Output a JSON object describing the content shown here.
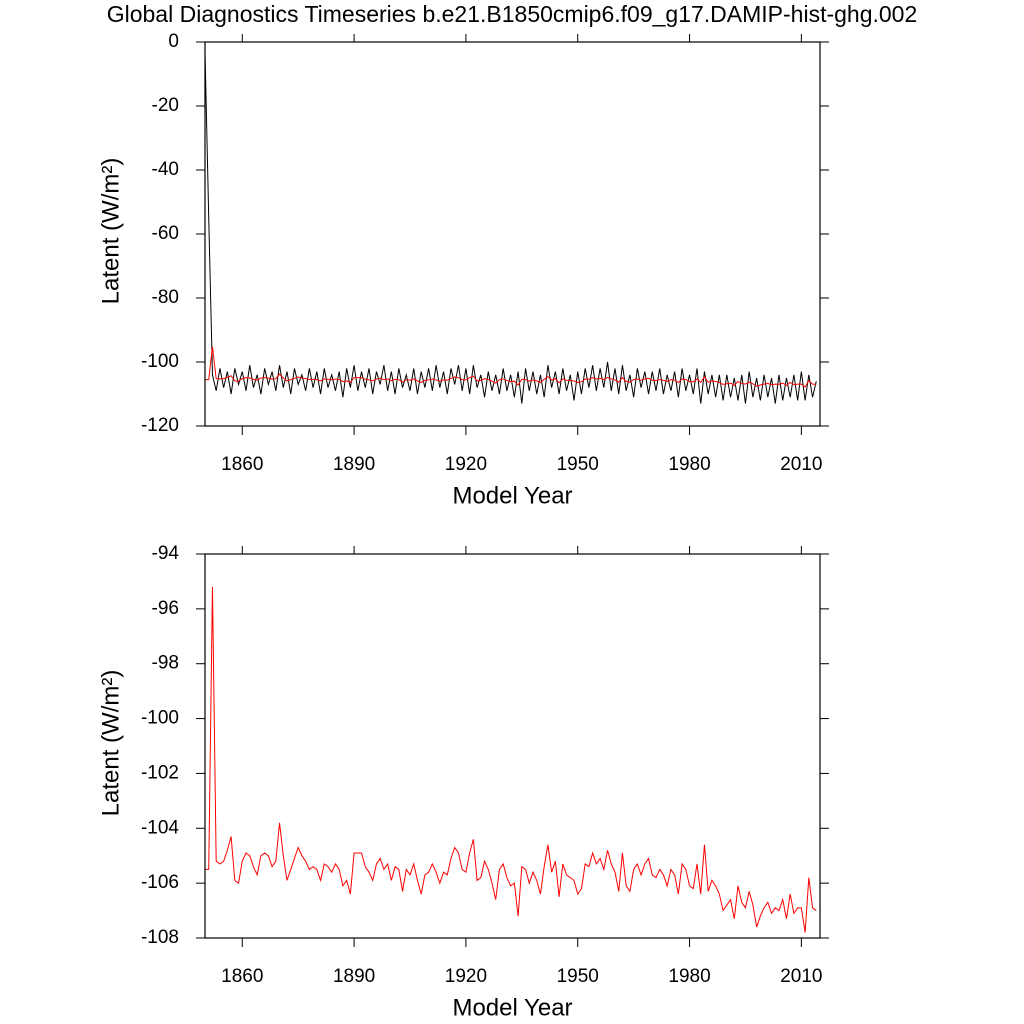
{
  "chart_data": [
    {
      "type": "line",
      "title": "Global Diagnostics Timeseries b.e21.B1850cmip6.f09_g17.DAMIP-hist-ghg.002",
      "x_label": "Model Year",
      "y_label": "Latent (W/m²)",
      "xlim": [
        1850,
        2015
      ],
      "xticks": [
        1860,
        1890,
        1920,
        1950,
        1980,
        2010
      ],
      "ylim": [
        -120,
        0
      ],
      "yticks": [
        -120,
        -100,
        -80,
        -60,
        -40,
        -20,
        0
      ],
      "x": [
        1850,
        1851,
        1852,
        1853,
        1854,
        1855,
        1856,
        1857,
        1858,
        1859,
        1860,
        1861,
        1862,
        1863,
        1864,
        1865,
        1866,
        1867,
        1868,
        1869,
        1870,
        1871,
        1872,
        1873,
        1874,
        1875,
        1876,
        1877,
        1878,
        1879,
        1880,
        1881,
        1882,
        1883,
        1884,
        1885,
        1886,
        1887,
        1888,
        1889,
        1890,
        1891,
        1892,
        1893,
        1894,
        1895,
        1896,
        1897,
        1898,
        1899,
        1900,
        1901,
        1902,
        1903,
        1904,
        1905,
        1906,
        1907,
        1908,
        1909,
        1910,
        1911,
        1912,
        1913,
        1914,
        1915,
        1916,
        1917,
        1918,
        1919,
        1920,
        1921,
        1922,
        1923,
        1924,
        1925,
        1926,
        1927,
        1928,
        1929,
        1930,
        1931,
        1932,
        1933,
        1934,
        1935,
        1936,
        1937,
        1938,
        1939,
        1940,
        1941,
        1942,
        1943,
        1944,
        1945,
        1946,
        1947,
        1948,
        1949,
        1950,
        1951,
        1952,
        1953,
        1954,
        1955,
        1956,
        1957,
        1958,
        1959,
        1960,
        1961,
        1962,
        1963,
        1964,
        1965,
        1966,
        1967,
        1968,
        1969,
        1970,
        1971,
        1972,
        1973,
        1974,
        1975,
        1976,
        1977,
        1978,
        1979,
        1980,
        1981,
        1982,
        1983,
        1984,
        1985,
        1986,
        1987,
        1988,
        1989,
        1990,
        1991,
        1992,
        1993,
        1994,
        1995,
        1996,
        1997,
        1998,
        1999,
        2000,
        2001,
        2002,
        2003,
        2004,
        2005,
        2006,
        2007,
        2008,
        2009,
        2010,
        2011,
        2012,
        2013,
        2014
      ],
      "series": [
        {
          "color": "#000000",
          "values": [
            -3,
            -55,
            -104,
            -109,
            -102,
            -108,
            -103,
            -110,
            -102,
            -107,
            -103,
            -109,
            -101,
            -108,
            -104,
            -110,
            -102,
            -107,
            -103,
            -109,
            -101,
            -108,
            -103,
            -110,
            -102,
            -107,
            -104,
            -109,
            -102,
            -108,
            -103,
            -110,
            -102,
            -108,
            -104,
            -109,
            -103,
            -111,
            -102,
            -108,
            -101,
            -109,
            -103,
            -108,
            -102,
            -110,
            -103,
            -107,
            -101,
            -109,
            -103,
            -110,
            -102,
            -108,
            -104,
            -109,
            -102,
            -110,
            -103,
            -108,
            -102,
            -109,
            -101,
            -108,
            -103,
            -110,
            -102,
            -107,
            -101,
            -109,
            -102,
            -110,
            -101,
            -108,
            -104,
            -111,
            -103,
            -109,
            -104,
            -110,
            -102,
            -109,
            -104,
            -111,
            -103,
            -113,
            -102,
            -109,
            -103,
            -110,
            -104,
            -111,
            -101,
            -108,
            -103,
            -110,
            -102,
            -109,
            -104,
            -112,
            -103,
            -110,
            -102,
            -108,
            -101,
            -109,
            -102,
            -108,
            -100,
            -109,
            -102,
            -110,
            -101,
            -109,
            -104,
            -111,
            -102,
            -108,
            -103,
            -110,
            -103,
            -109,
            -102,
            -110,
            -104,
            -109,
            -103,
            -111,
            -102,
            -109,
            -104,
            -110,
            -102,
            -113,
            -103,
            -110,
            -104,
            -111,
            -104,
            -112,
            -104,
            -111,
            -105,
            -112,
            -104,
            -113,
            -103,
            -111,
            -105,
            -112,
            -104,
            -111,
            -105,
            -113,
            -104,
            -112,
            -105,
            -111,
            -104,
            -112,
            -103,
            -112,
            -104,
            -111,
            -106
          ]
        },
        {
          "color": "#ff0000",
          "values": [
            -105.5,
            -105.5,
            -95.2,
            -105.2,
            -105.3,
            -105.2,
            -104.8,
            -104.3,
            -105.9,
            -106.0,
            -105.2,
            -104.9,
            -105.0,
            -105.4,
            -105.7,
            -105.0,
            -104.9,
            -105.0,
            -105.4,
            -105.2,
            -103.8,
            -105.0,
            -105.9,
            -105.5,
            -105.1,
            -104.7,
            -105.0,
            -105.2,
            -105.5,
            -105.4,
            -105.5,
            -105.9,
            -105.3,
            -105.4,
            -105.6,
            -105.3,
            -105.5,
            -106.1,
            -105.9,
            -106.4,
            -104.9,
            -104.9,
            -104.9,
            -105.4,
            -105.6,
            -105.9,
            -105.3,
            -105.1,
            -105.5,
            -105.3,
            -105.9,
            -105.4,
            -105.5,
            -106.3,
            -105.5,
            -105.7,
            -105.3,
            -105.9,
            -106.4,
            -105.7,
            -105.6,
            -105.3,
            -105.6,
            -106.0,
            -105.6,
            -105.7,
            -105.1,
            -104.7,
            -104.9,
            -105.5,
            -105.6,
            -104.9,
            -104.4,
            -105.9,
            -105.8,
            -105.2,
            -105.5,
            -106.0,
            -106.6,
            -105.5,
            -105.3,
            -105.8,
            -106.1,
            -106.0,
            -107.2,
            -105.4,
            -105.5,
            -106.0,
            -105.6,
            -105.9,
            -106.4,
            -105.4,
            -104.6,
            -105.6,
            -105.2,
            -106.5,
            -105.3,
            -105.7,
            -105.8,
            -105.9,
            -106.4,
            -106.2,
            -105.3,
            -105.4,
            -104.9,
            -105.3,
            -105.1,
            -105.5,
            -104.8,
            -105.3,
            -105.6,
            -106.3,
            -104.9,
            -106.1,
            -106.3,
            -105.5,
            -105.3,
            -105.7,
            -105.3,
            -105.1,
            -105.7,
            -105.8,
            -105.5,
            -105.7,
            -106.1,
            -105.5,
            -105.7,
            -106.4,
            -105.3,
            -105.5,
            -106.1,
            -106.2,
            -105.3,
            -106.4,
            -104.6,
            -106.3,
            -105.9,
            -106.1,
            -106.4,
            -107.0,
            -106.8,
            -106.6,
            -107.3,
            -106.1,
            -106.7,
            -106.9,
            -106.3,
            -106.8,
            -107.6,
            -107.2,
            -106.9,
            -106.7,
            -107.1,
            -106.9,
            -107.0,
            -106.6,
            -107.3,
            -106.4,
            -107.1,
            -106.9,
            -106.9,
            -107.8,
            -105.8,
            -106.9,
            -107.0
          ]
        }
      ]
    },
    {
      "type": "line",
      "x_label": "Model Year",
      "y_label": "Latent (W/m²)",
      "xlim": [
        1850,
        2015
      ],
      "xticks": [
        1860,
        1890,
        1920,
        1950,
        1980,
        2010
      ],
      "ylim": [
        -108,
        -94
      ],
      "yticks": [
        -108,
        -106,
        -104,
        -102,
        -100,
        -98,
        -96,
        -94
      ],
      "x": [
        1850,
        1851,
        1852,
        1853,
        1854,
        1855,
        1856,
        1857,
        1858,
        1859,
        1860,
        1861,
        1862,
        1863,
        1864,
        1865,
        1866,
        1867,
        1868,
        1869,
        1870,
        1871,
        1872,
        1873,
        1874,
        1875,
        1876,
        1877,
        1878,
        1879,
        1880,
        1881,
        1882,
        1883,
        1884,
        1885,
        1886,
        1887,
        1888,
        1889,
        1890,
        1891,
        1892,
        1893,
        1894,
        1895,
        1896,
        1897,
        1898,
        1899,
        1900,
        1901,
        1902,
        1903,
        1904,
        1905,
        1906,
        1907,
        1908,
        1909,
        1910,
        1911,
        1912,
        1913,
        1914,
        1915,
        1916,
        1917,
        1918,
        1919,
        1920,
        1921,
        1922,
        1923,
        1924,
        1925,
        1926,
        1927,
        1928,
        1929,
        1930,
        1931,
        1932,
        1933,
        1934,
        1935,
        1936,
        1937,
        1938,
        1939,
        1940,
        1941,
        1942,
        1943,
        1944,
        1945,
        1946,
        1947,
        1948,
        1949,
        1950,
        1951,
        1952,
        1953,
        1954,
        1955,
        1956,
        1957,
        1958,
        1959,
        1960,
        1961,
        1962,
        1963,
        1964,
        1965,
        1966,
        1967,
        1968,
        1969,
        1970,
        1971,
        1972,
        1973,
        1974,
        1975,
        1976,
        1977,
        1978,
        1979,
        1980,
        1981,
        1982,
        1983,
        1984,
        1985,
        1986,
        1987,
        1988,
        1989,
        1990,
        1991,
        1992,
        1993,
        1994,
        1995,
        1996,
        1997,
        1998,
        1999,
        2000,
        2001,
        2002,
        2003,
        2004,
        2005,
        2006,
        2007,
        2008,
        2009,
        2010,
        2011,
        2012,
        2013,
        2014
      ],
      "series": [
        {
          "color": "#ff0000",
          "values": [
            -105.5,
            -105.5,
            -95.2,
            -105.2,
            -105.3,
            -105.2,
            -104.8,
            -104.3,
            -105.9,
            -106.0,
            -105.2,
            -104.9,
            -105.0,
            -105.4,
            -105.7,
            -105.0,
            -104.9,
            -105.0,
            -105.4,
            -105.2,
            -103.8,
            -105.0,
            -105.9,
            -105.5,
            -105.1,
            -104.7,
            -105.0,
            -105.2,
            -105.5,
            -105.4,
            -105.5,
            -105.9,
            -105.3,
            -105.4,
            -105.6,
            -105.3,
            -105.5,
            -106.1,
            -105.9,
            -106.4,
            -104.9,
            -104.9,
            -104.9,
            -105.4,
            -105.6,
            -105.9,
            -105.3,
            -105.1,
            -105.5,
            -105.3,
            -105.9,
            -105.4,
            -105.5,
            -106.3,
            -105.5,
            -105.7,
            -105.3,
            -105.9,
            -106.4,
            -105.7,
            -105.6,
            -105.3,
            -105.6,
            -106.0,
            -105.6,
            -105.7,
            -105.1,
            -104.7,
            -104.9,
            -105.5,
            -105.6,
            -104.9,
            -104.4,
            -105.9,
            -105.8,
            -105.2,
            -105.5,
            -106.0,
            -106.6,
            -105.5,
            -105.3,
            -105.8,
            -106.1,
            -106.0,
            -107.2,
            -105.4,
            -105.5,
            -106.0,
            -105.6,
            -105.9,
            -106.4,
            -105.4,
            -104.6,
            -105.6,
            -105.2,
            -106.5,
            -105.3,
            -105.7,
            -105.8,
            -105.9,
            -106.4,
            -106.2,
            -105.3,
            -105.4,
            -104.9,
            -105.3,
            -105.1,
            -105.5,
            -104.8,
            -105.3,
            -105.6,
            -106.3,
            -104.9,
            -106.1,
            -106.3,
            -105.5,
            -105.3,
            -105.7,
            -105.3,
            -105.1,
            -105.7,
            -105.8,
            -105.5,
            -105.7,
            -106.1,
            -105.5,
            -105.7,
            -106.4,
            -105.3,
            -105.5,
            -106.1,
            -106.2,
            -105.3,
            -106.4,
            -104.6,
            -106.3,
            -105.9,
            -106.1,
            -106.4,
            -107.0,
            -106.8,
            -106.6,
            -107.3,
            -106.1,
            -106.7,
            -106.9,
            -106.3,
            -106.8,
            -107.6,
            -107.2,
            -106.9,
            -106.7,
            -107.1,
            -106.9,
            -107.0,
            -106.6,
            -107.3,
            -106.4,
            -107.1,
            -106.9,
            -106.9,
            -107.8,
            -105.8,
            -106.9,
            -107.0
          ]
        }
      ]
    }
  ]
}
